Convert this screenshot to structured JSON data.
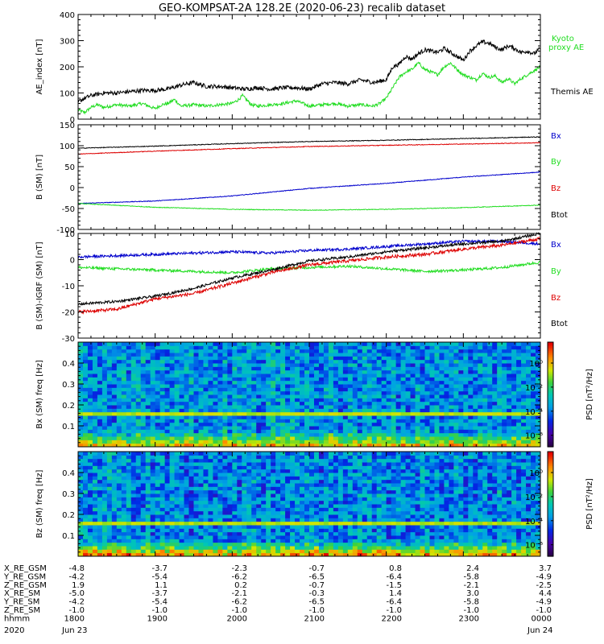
{
  "title": "GEO-KOMPSAT-2A 128.2E (2020-06-23) recalib dataset",
  "chart_data": [
    {
      "type": "line",
      "ylabel": "AE_index [nT]",
      "ylim": [
        0,
        400
      ],
      "yticks": [
        0,
        100,
        200,
        300,
        400
      ],
      "series": [
        {
          "name": "Kyoto proxy AE",
          "color": "#22dd22",
          "x": [
            1800,
            1805,
            1810,
            1815,
            1820,
            1830,
            1840,
            1850,
            1900,
            1905,
            1910,
            1915,
            1920,
            1930,
            1940,
            1950,
            2000,
            2005,
            2008,
            2012,
            2015,
            2020,
            2030,
            2040,
            2050,
            2100,
            2110,
            2120,
            2130,
            2140,
            2150,
            2155,
            2200,
            2205,
            2210,
            2215,
            2220,
            2225,
            2230,
            2240,
            2245,
            2250,
            2255,
            2300,
            2305,
            2310,
            2315,
            2320,
            2325,
            2330,
            2335,
            2340,
            2345,
            2350,
            2355,
            2400
          ],
          "values": [
            35,
            25,
            45,
            55,
            45,
            55,
            50,
            60,
            40,
            55,
            60,
            75,
            50,
            55,
            50,
            55,
            60,
            75,
            90,
            70,
            55,
            50,
            55,
            60,
            70,
            50,
            55,
            60,
            50,
            55,
            50,
            60,
            80,
            120,
            160,
            180,
            190,
            215,
            190,
            170,
            200,
            215,
            190,
            170,
            160,
            150,
            175,
            160,
            165,
            140,
            155,
            135,
            155,
            170,
            185,
            200
          ]
        },
        {
          "name": "Themis AE",
          "color": "#000000",
          "x": [
            1800,
            1805,
            1810,
            1815,
            1820,
            1830,
            1840,
            1850,
            1900,
            1910,
            1920,
            1930,
            1940,
            1950,
            2000,
            2010,
            2020,
            2030,
            2040,
            2050,
            2100,
            2110,
            2120,
            2130,
            2140,
            2150,
            2155,
            2200,
            2205,
            2210,
            2215,
            2220,
            2225,
            2230,
            2240,
            2245,
            2250,
            2255,
            2300,
            2305,
            2310,
            2315,
            2320,
            2325,
            2330,
            2335,
            2340,
            2345,
            2350,
            2355,
            2400
          ],
          "values": [
            65,
            80,
            90,
            95,
            100,
            100,
            105,
            110,
            110,
            115,
            130,
            140,
            125,
            125,
            120,
            115,
            120,
            115,
            120,
            120,
            115,
            135,
            140,
            135,
            150,
            140,
            145,
            150,
            200,
            210,
            240,
            230,
            250,
            265,
            255,
            270,
            255,
            240,
            225,
            260,
            280,
            295,
            290,
            275,
            265,
            280,
            270,
            255,
            260,
            250,
            270
          ]
        }
      ],
      "legend": [
        "Kyoto proxy AE",
        "Themis AE"
      ],
      "legend_placement": "right"
    },
    {
      "type": "line",
      "ylabel": "B (SM) [nT]",
      "ylim": [
        -100,
        150
      ],
      "yticks": [
        -100,
        -50,
        0,
        50,
        100,
        150
      ],
      "series": [
        {
          "name": "Bx",
          "color": "#0000cc",
          "x": [
            1800,
            1900,
            2000,
            2100,
            2200,
            2300,
            2400
          ],
          "values": [
            -38,
            -32,
            -20,
            -2,
            10,
            25,
            37
          ]
        },
        {
          "name": "By",
          "color": "#22dd22",
          "x": [
            1800,
            1900,
            2000,
            2100,
            2200,
            2300,
            2400
          ],
          "values": [
            -38,
            -47,
            -52,
            -54,
            -52,
            -48,
            -42
          ]
        },
        {
          "name": "Bz",
          "color": "#dd0000",
          "x": [
            1800,
            1900,
            2000,
            2100,
            2200,
            2300,
            2400
          ],
          "values": [
            80,
            87,
            93,
            98,
            101,
            104,
            107
          ]
        },
        {
          "name": "Btot",
          "color": "#000000",
          "x": [
            1800,
            1900,
            2000,
            2100,
            2200,
            2300,
            2400
          ],
          "values": [
            94,
            99,
            105,
            110,
            113,
            117,
            121
          ]
        }
      ],
      "legend": [
        "Bx",
        "By",
        "Bz",
        "Btot"
      ],
      "legend_placement": "right"
    },
    {
      "type": "line",
      "ylabel": "B (SM)-IGRF (SM) [nT]",
      "ylim": [
        -30,
        10
      ],
      "yticks": [
        -30,
        -20,
        -10,
        0,
        10
      ],
      "series": [
        {
          "name": "Bx",
          "color": "#0000cc",
          "x": [
            1800,
            1830,
            1900,
            1930,
            2000,
            2030,
            2100,
            2130,
            2200,
            2230,
            2300,
            2330,
            2400
          ],
          "values": [
            1,
            1.5,
            2,
            2.5,
            3,
            2.5,
            3.5,
            4,
            5,
            6,
            7,
            7,
            6
          ]
        },
        {
          "name": "By",
          "color": "#22dd22",
          "x": [
            1800,
            1830,
            1900,
            1930,
            2000,
            2030,
            2100,
            2130,
            2200,
            2230,
            2300,
            2330,
            2400
          ],
          "values": [
            -3,
            -3.5,
            -4,
            -4.5,
            -5,
            -3.5,
            -3,
            -2.5,
            -3.5,
            -4.5,
            -4,
            -3,
            -1
          ]
        },
        {
          "name": "Bz",
          "color": "#dd0000",
          "x": [
            1800,
            1830,
            1900,
            1930,
            2000,
            2030,
            2100,
            2130,
            2200,
            2230,
            2300,
            2330,
            2400
          ],
          "values": [
            -20,
            -19,
            -15,
            -13,
            -9,
            -5,
            -2,
            -0.5,
            1,
            2,
            4,
            5.5,
            8
          ]
        },
        {
          "name": "Btot",
          "color": "#000000",
          "x": [
            1800,
            1830,
            1900,
            1930,
            2000,
            2030,
            2100,
            2130,
            2200,
            2230,
            2300,
            2330,
            2400
          ],
          "values": [
            -17,
            -16,
            -14,
            -11,
            -7,
            -4,
            -0.5,
            1,
            3,
            4.5,
            6,
            7,
            10
          ]
        }
      ],
      "legend": [
        "Bx",
        "By",
        "Bz",
        "Btot"
      ],
      "legend_placement": "right"
    },
    {
      "type": "heatmap",
      "ylabel": "Bx (SM) freq [Hz]",
      "ylim": [
        0,
        0.5
      ],
      "yticks": [
        0.1,
        0.2,
        0.3,
        0.4
      ],
      "colorbar_label": "PSD [nT²/Hz]",
      "colorbar_ticks": [
        "10⁰",
        "10⁻²",
        "10⁻⁴",
        "10⁻⁶"
      ],
      "background_level": 0.38,
      "line_freq": 0.165,
      "low_freq_strength": 1.0
    },
    {
      "type": "heatmap",
      "ylabel": "Bz (SM) freq [Hz]",
      "ylim": [
        0,
        0.5
      ],
      "yticks": [
        0.1,
        0.2,
        0.3,
        0.4
      ],
      "colorbar_label": "PSD [nT²/Hz]",
      "colorbar_ticks": [
        "10⁰",
        "10⁻²",
        "10⁻⁴",
        "10⁻⁶"
      ],
      "background_level": 0.36,
      "line_freq": 0.165,
      "low_freq_strength": 1.15
    }
  ],
  "xaxis": {
    "range": [
      1800,
      2400
    ],
    "ephemeris": [
      {
        "label": "X_RE_GSM",
        "values": [
          "-4.8",
          "-3.7",
          "-2.3",
          "-0.7",
          "0.8",
          "2.4",
          "3.7"
        ]
      },
      {
        "label": "Y_RE_GSM",
        "values": [
          "-4.2",
          "-5.4",
          "-6.2",
          "-6.5",
          "-6.4",
          "-5.8",
          "-4.9"
        ]
      },
      {
        "label": "Z_RE_GSM",
        "values": [
          "1.9",
          "1.1",
          "0.2",
          "-0.7",
          "-1.5",
          "-2.1",
          "-2.5"
        ]
      },
      {
        "label": "X_RE_SM",
        "values": [
          "-5.0",
          "-3.7",
          "-2.1",
          "-0.3",
          "1.4",
          "3.0",
          "4.4"
        ]
      },
      {
        "label": "Y_RE_SM",
        "values": [
          "-4.2",
          "-5.4",
          "-6.2",
          "-6.5",
          "-6.4",
          "-5.8",
          "-4.9"
        ]
      },
      {
        "label": "Z_RE_SM",
        "values": [
          "-1.0",
          "-1.0",
          "-1.0",
          "-1.0",
          "-1.0",
          "-1.0",
          "-1.0"
        ]
      },
      {
        "label": "hhmm",
        "values": [
          "1800",
          "1900",
          "2000",
          "2100",
          "2200",
          "2300",
          "0000"
        ]
      }
    ],
    "year_label": "2020",
    "date_start": "Jun 23",
    "date_end": "Jun 24"
  }
}
